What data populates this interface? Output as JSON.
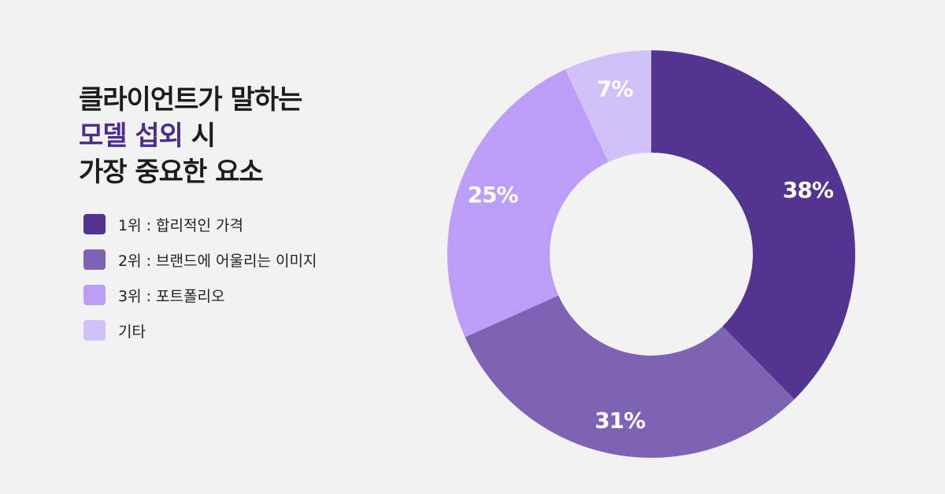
{
  "title": {
    "line1": "클라이언트가 말하는",
    "line2_accent": "모델 섭외",
    "line2_rest": " 시",
    "line3": "가장 중요한 요소"
  },
  "chart_data": {
    "type": "pie",
    "donut": true,
    "categories": [
      "1위 : 합리적인 가격",
      "2위 : 브랜드에 어울리는 이미지",
      "3위 : 포트폴리오",
      "기타"
    ],
    "values": [
      38,
      31,
      25,
      7
    ],
    "labels": [
      "38%",
      "31%",
      "25%",
      "7%"
    ],
    "colors": [
      "#533591",
      "#7e63b4",
      "#bc9ef9",
      "#d1c1f9"
    ],
    "start": "top",
    "direction": "clockwise",
    "legend_position": "left"
  }
}
